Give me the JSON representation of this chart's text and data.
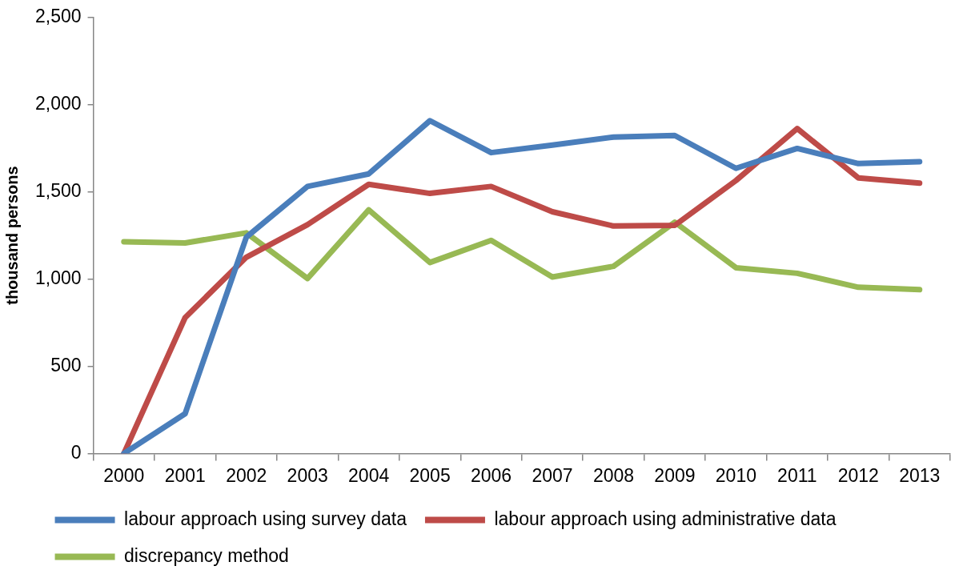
{
  "chart_data": {
    "type": "line",
    "ylabel": "thousand persons",
    "categories": [
      "2000",
      "2001",
      "2002",
      "2003",
      "2004",
      "2005",
      "2006",
      "2007",
      "2008",
      "2009",
      "2010",
      "2011",
      "2012",
      "2013"
    ],
    "series": [
      {
        "name": "labour approach using survey data",
        "color": "#4a7ebb",
        "values": [
          0,
          228,
          1240,
          1531,
          1603,
          1908,
          1725,
          1768,
          1814,
          1823,
          1635,
          1749,
          1662,
          1673
        ]
      },
      {
        "name": "labour approach using administrative data",
        "color": "#be4b48",
        "values": [
          0,
          779,
          1125,
          1312,
          1543,
          1491,
          1531,
          1386,
          1304,
          1308,
          1565,
          1863,
          1580,
          1550
        ]
      },
      {
        "name": "discrepancy method",
        "color": "#98b954",
        "values": [
          1214,
          1207,
          1265,
          1003,
          1397,
          1095,
          1222,
          1012,
          1073,
          1326,
          1065,
          1033,
          953,
          939
        ]
      }
    ],
    "ylim": [
      0,
      2500
    ],
    "yticks": [
      0,
      500,
      {
        "value": 1000,
        "label": "1,000"
      },
      {
        "value": 1500,
        "label": "1,500"
      },
      {
        "value": 2000,
        "label": "2,000"
      },
      {
        "value": 2500,
        "label": "2,500"
      }
    ],
    "grid": false,
    "legend": "bottom",
    "marker": "none",
    "line_style": "solid"
  }
}
